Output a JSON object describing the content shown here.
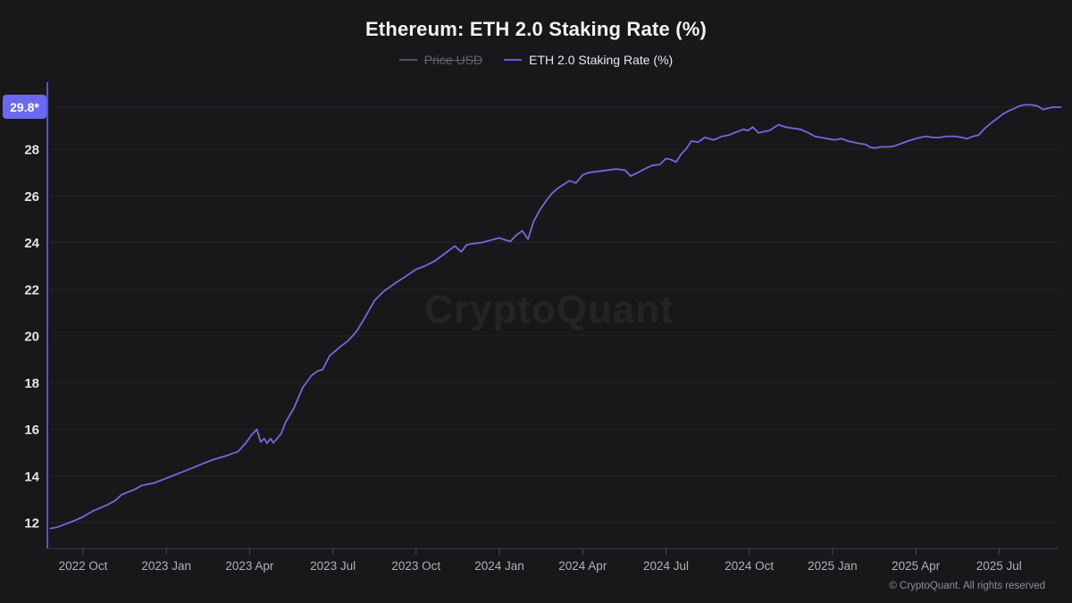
{
  "header": {
    "title": "Ethereum: ETH 2.0 Staking Rate (%)"
  },
  "legend": {
    "price": {
      "label": "Price USD",
      "active": false,
      "color": "#55555e"
    },
    "staking": {
      "label": "ETH 2.0 Staking Rate (%)",
      "active": true,
      "color": "#5e5ce6"
    }
  },
  "badge": "29.8*",
  "watermark": "CryptoQuant",
  "footer": {
    "copyright": "© CryptoQuant. All rights reserved"
  },
  "colors": {
    "background": "#18181b",
    "line": "#7269de",
    "axis_line": "#5056d0",
    "gridline": "#242429",
    "baseline": "#3a3a42",
    "tick": "#4a4a52",
    "y_label": "#e4e4e8",
    "x_label": "#b0b0b6",
    "badge_bg": "#6b69ef"
  },
  "chart_data": {
    "type": "line",
    "title": "Ethereum: ETH 2.0 Staking Rate (%)",
    "series_name": "ETH 2.0 Staking Rate (%)",
    "ylabel": "ETH 2.0 Staking Rate (%)",
    "ylim": [
      10.9,
      30.8
    ],
    "grid": true,
    "legend_position": "top-center",
    "current_value": 29.8,
    "y_ticks": [
      12,
      14,
      16,
      18,
      20,
      22,
      24,
      26,
      28
    ],
    "x_ticks": [
      {
        "label": "2022 Oct",
        "date": "2022-10-01"
      },
      {
        "label": "2023 Jan",
        "date": "2023-01-01"
      },
      {
        "label": "2023 Apr",
        "date": "2023-04-01"
      },
      {
        "label": "2023 Jul",
        "date": "2023-07-01"
      },
      {
        "label": "2023 Oct",
        "date": "2023-10-01"
      },
      {
        "label": "2024 Jan",
        "date": "2024-01-01"
      },
      {
        "label": "2024 Apr",
        "date": "2024-04-01"
      },
      {
        "label": "2024 Jul",
        "date": "2024-07-01"
      },
      {
        "label": "2024 Oct",
        "date": "2024-10-01"
      },
      {
        "label": "2025 Jan",
        "date": "2025-01-01"
      },
      {
        "label": "2025 Apr",
        "date": "2025-04-01"
      },
      {
        "label": "2025 Jul",
        "date": "2025-07-01"
      }
    ],
    "points": [
      [
        "2022-08-26",
        11.75
      ],
      [
        "2022-09-03",
        11.8
      ],
      [
        "2022-09-13",
        11.95
      ],
      [
        "2022-09-23",
        12.1
      ],
      [
        "2022-10-01",
        12.25
      ],
      [
        "2022-10-12",
        12.5
      ],
      [
        "2022-10-27",
        12.75
      ],
      [
        "2022-11-06",
        12.95
      ],
      [
        "2022-11-13",
        13.2
      ],
      [
        "2022-11-26",
        13.4
      ],
      [
        "2022-12-05",
        13.6
      ],
      [
        "2022-12-18",
        13.7
      ],
      [
        "2023-01-01",
        13.9
      ],
      [
        "2023-01-14",
        14.1
      ],
      [
        "2023-01-27",
        14.3
      ],
      [
        "2023-02-09",
        14.5
      ],
      [
        "2023-02-22",
        14.7
      ],
      [
        "2023-03-05",
        14.85
      ],
      [
        "2023-03-19",
        15.05
      ],
      [
        "2023-03-27",
        15.4
      ],
      [
        "2023-04-03",
        15.75
      ],
      [
        "2023-04-09",
        16.0
      ],
      [
        "2023-04-13",
        15.45
      ],
      [
        "2023-04-17",
        15.6
      ],
      [
        "2023-04-20",
        15.4
      ],
      [
        "2023-04-24",
        15.6
      ],
      [
        "2023-04-27",
        15.42
      ],
      [
        "2023-04-30",
        15.55
      ],
      [
        "2023-05-05",
        15.8
      ],
      [
        "2023-05-10",
        16.3
      ],
      [
        "2023-05-19",
        16.9
      ],
      [
        "2023-05-29",
        17.8
      ],
      [
        "2023-06-08",
        18.3
      ],
      [
        "2023-06-15",
        18.5
      ],
      [
        "2023-06-20",
        18.55
      ],
      [
        "2023-06-28",
        19.15
      ],
      [
        "2023-07-08",
        19.5
      ],
      [
        "2023-07-18",
        19.8
      ],
      [
        "2023-07-27",
        20.2
      ],
      [
        "2023-08-06",
        20.8
      ],
      [
        "2023-08-16",
        21.5
      ],
      [
        "2023-08-26",
        21.9
      ],
      [
        "2023-09-10",
        22.3
      ],
      [
        "2023-09-20",
        22.55
      ],
      [
        "2023-10-01",
        22.85
      ],
      [
        "2023-10-11",
        23.0
      ],
      [
        "2023-10-21",
        23.2
      ],
      [
        "2023-11-01",
        23.5
      ],
      [
        "2023-11-13",
        23.85
      ],
      [
        "2023-11-20",
        23.6
      ],
      [
        "2023-11-26",
        23.9
      ],
      [
        "2023-12-02",
        23.95
      ],
      [
        "2023-12-12",
        24.0
      ],
      [
        "2023-12-22",
        24.1
      ],
      [
        "2024-01-01",
        24.2
      ],
      [
        "2024-01-08",
        24.1
      ],
      [
        "2024-01-13",
        24.05
      ],
      [
        "2024-01-19",
        24.3
      ],
      [
        "2024-01-26",
        24.5
      ],
      [
        "2024-02-02",
        24.15
      ],
      [
        "2024-02-08",
        24.9
      ],
      [
        "2024-02-15",
        25.4
      ],
      [
        "2024-02-22",
        25.8
      ],
      [
        "2024-02-28",
        26.1
      ],
      [
        "2024-03-05",
        26.35
      ],
      [
        "2024-03-11",
        26.5
      ],
      [
        "2024-03-17",
        26.65
      ],
      [
        "2024-03-24",
        26.55
      ],
      [
        "2024-04-01",
        26.9
      ],
      [
        "2024-04-08",
        27.0
      ],
      [
        "2024-04-18",
        27.05
      ],
      [
        "2024-04-28",
        27.1
      ],
      [
        "2024-05-07",
        27.15
      ],
      [
        "2024-05-17",
        27.1
      ],
      [
        "2024-05-23",
        26.85
      ],
      [
        "2024-06-01",
        27.0
      ],
      [
        "2024-06-08",
        27.15
      ],
      [
        "2024-06-16",
        27.3
      ],
      [
        "2024-06-25",
        27.35
      ],
      [
        "2024-07-01",
        27.6
      ],
      [
        "2024-07-07",
        27.55
      ],
      [
        "2024-07-12",
        27.45
      ],
      [
        "2024-07-18",
        27.8
      ],
      [
        "2024-07-23",
        28.0
      ],
      [
        "2024-07-29",
        28.35
      ],
      [
        "2024-08-06",
        28.3
      ],
      [
        "2024-08-13",
        28.5
      ],
      [
        "2024-08-23",
        28.4
      ],
      [
        "2024-09-02",
        28.55
      ],
      [
        "2024-09-09",
        28.6
      ],
      [
        "2024-09-15",
        28.7
      ],
      [
        "2024-09-25",
        28.85
      ],
      [
        "2024-09-30",
        28.8
      ],
      [
        "2024-10-05",
        28.95
      ],
      [
        "2024-10-11",
        28.7
      ],
      [
        "2024-10-17",
        28.75
      ],
      [
        "2024-10-23",
        28.8
      ],
      [
        "2024-10-29",
        28.95
      ],
      [
        "2024-11-03",
        29.05
      ],
      [
        "2024-11-10",
        28.95
      ],
      [
        "2024-11-18",
        28.9
      ],
      [
        "2024-11-27",
        28.85
      ],
      [
        "2024-12-05",
        28.7
      ],
      [
        "2024-12-12",
        28.55
      ],
      [
        "2024-12-19",
        28.5
      ],
      [
        "2024-12-26",
        28.45
      ],
      [
        "2025-01-03",
        28.4
      ],
      [
        "2025-01-11",
        28.45
      ],
      [
        "2025-01-18",
        28.35
      ],
      [
        "2025-01-24",
        28.3
      ],
      [
        "2025-01-30",
        28.25
      ],
      [
        "2025-02-07",
        28.2
      ],
      [
        "2025-02-11",
        28.1
      ],
      [
        "2025-02-17",
        28.05
      ],
      [
        "2025-02-24",
        28.1
      ],
      [
        "2025-03-03",
        28.1
      ],
      [
        "2025-03-09",
        28.15
      ],
      [
        "2025-03-16",
        28.25
      ],
      [
        "2025-03-23",
        28.35
      ],
      [
        "2025-04-01",
        28.45
      ],
      [
        "2025-04-06",
        28.5
      ],
      [
        "2025-04-12",
        28.55
      ],
      [
        "2025-04-20",
        28.5
      ],
      [
        "2025-04-27",
        28.5
      ],
      [
        "2025-05-04",
        28.55
      ],
      [
        "2025-05-14",
        28.55
      ],
      [
        "2025-05-21",
        28.5
      ],
      [
        "2025-05-27",
        28.45
      ],
      [
        "2025-06-03",
        28.55
      ],
      [
        "2025-06-09",
        28.6
      ],
      [
        "2025-06-16",
        28.9
      ],
      [
        "2025-06-22",
        29.1
      ],
      [
        "2025-06-29",
        29.3
      ],
      [
        "2025-07-05",
        29.5
      ],
      [
        "2025-07-12",
        29.65
      ],
      [
        "2025-07-18",
        29.75
      ],
      [
        "2025-07-23",
        29.85
      ],
      [
        "2025-07-29",
        29.9
      ],
      [
        "2025-08-05",
        29.9
      ],
      [
        "2025-08-13",
        29.85
      ],
      [
        "2025-08-19",
        29.7
      ],
      [
        "2025-08-24",
        29.75
      ],
      [
        "2025-08-29",
        29.8
      ],
      [
        "2025-09-08",
        29.8
      ]
    ]
  }
}
